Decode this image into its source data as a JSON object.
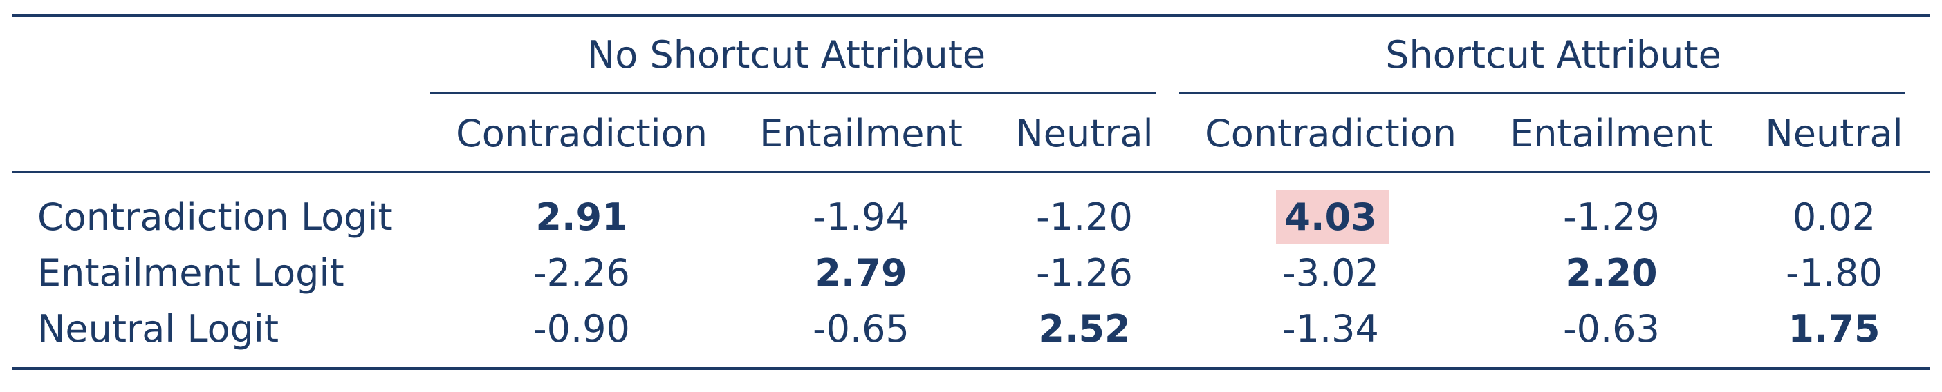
{
  "table": {
    "group_headers": [
      "No Shortcut Attribute",
      "Shortcut Attribute"
    ],
    "column_headers": [
      "Contradiction",
      "Entailment",
      "Neutral",
      "Contradiction",
      "Entailment",
      "Neutral"
    ],
    "rows": [
      {
        "label": "Contradiction Logit",
        "values": [
          "2.91",
          "-1.94",
          "-1.20",
          "4.03",
          "-1.29",
          "0.02"
        ]
      },
      {
        "label": "Entailment Logit",
        "values": [
          "-2.26",
          "2.79",
          "-1.26",
          "-3.02",
          "2.20",
          "-1.80"
        ]
      },
      {
        "label": "Neutral Logit",
        "values": [
          "-0.90",
          "-0.65",
          "2.52",
          "-1.34",
          "-0.63",
          "1.75"
        ]
      }
    ],
    "bold_cells": [
      [
        0,
        0
      ],
      [
        1,
        1
      ],
      [
        2,
        2
      ],
      [
        0,
        3
      ],
      [
        1,
        4
      ],
      [
        2,
        5
      ]
    ],
    "highlighted_cell": [
      0,
      3
    ],
    "colors": {
      "text": "#1d3a66",
      "highlight": "#f6cfcf"
    }
  }
}
